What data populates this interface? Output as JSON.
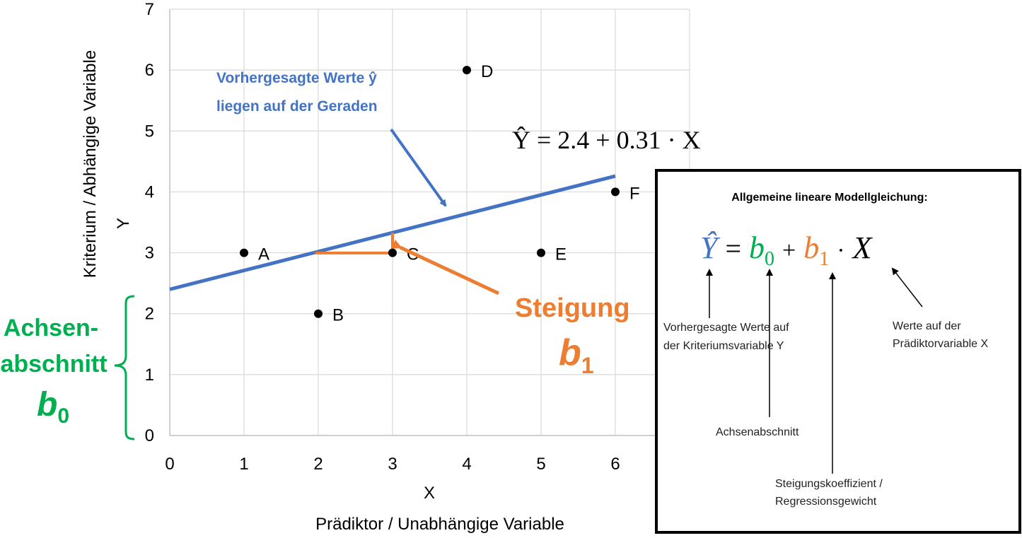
{
  "chart_data": {
    "type": "scatter",
    "points": [
      {
        "label": "A",
        "x": 1,
        "y": 3
      },
      {
        "label": "B",
        "x": 2,
        "y": 2
      },
      {
        "label": "C",
        "x": 3,
        "y": 3
      },
      {
        "label": "D",
        "x": 4,
        "y": 6
      },
      {
        "label": "E",
        "x": 5,
        "y": 3
      },
      {
        "label": "F",
        "x": 6,
        "y": 4
      }
    ],
    "regression_line": {
      "intercept": 2.4,
      "slope": 0.31,
      "x_range": [
        0,
        6
      ],
      "color": "#4472C4"
    },
    "slope_triangle": {
      "x_from": 2,
      "x_to": 3,
      "color": "#ED7D31"
    },
    "xlim": [
      0,
      7
    ],
    "ylim": [
      0,
      7
    ],
    "x_ticks": [
      "0",
      "1",
      "2",
      "3",
      "4",
      "5",
      "6"
    ],
    "y_ticks": [
      "0",
      "1",
      "2",
      "3",
      "4",
      "5",
      "6",
      "7"
    ],
    "xlabel": "X",
    "ylabel": "Y",
    "xlabel_sub": "Prädiktor / Unabhängige Variable",
    "ylabel_sub": "Kriterium / Abhängige Variable",
    "grid": true
  },
  "annotations": {
    "equation": "Ŷ = 2.4 + 0.31 · X",
    "predicted_note_line1": "Vorhergesagte Werte ŷ",
    "predicted_note_line2": "liegen auf der Geraden",
    "slope_word": "Steigung",
    "slope_symbol": "b",
    "slope_subscript": "1",
    "intercept_word_line1": "Achsen-",
    "intercept_word_line2": "abschnitt",
    "intercept_symbol": "b",
    "intercept_subscript": "0"
  },
  "info_box": {
    "title": "Allgemeine lineare Modellgleichung:",
    "eq_y": "Ŷ",
    "eq_equals": "=",
    "eq_b0": "b",
    "eq_b0_sub": "0",
    "eq_plus": "+",
    "eq_b1": "b",
    "eq_b1_sub": "1",
    "eq_dot": "·",
    "eq_x": "X",
    "note_y_line1": "Vorhergesagte Werte auf",
    "note_y_line2": "der Kriteriumsvariable Y",
    "note_b0": "Achsenabschnitt",
    "note_b1_line1": "Steigungskoeffizient /",
    "note_b1_line2": "Regressionsgewicht",
    "note_x_line1": "Werte auf der",
    "note_x_line2": "Prädiktorvariable X"
  },
  "colors": {
    "blue": "#4472C4",
    "orange": "#ED7D31",
    "green": "#00B050",
    "grid": "#D9D9D9"
  }
}
